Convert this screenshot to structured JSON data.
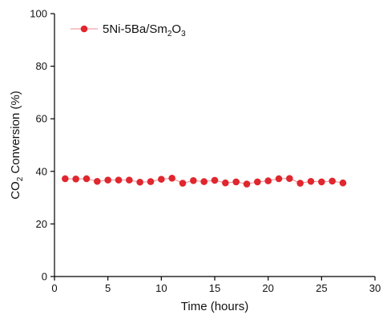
{
  "chart_data": {
    "type": "line",
    "xlabel": "Time (hours)",
    "ylabel": {
      "prefix": "CO",
      "sub": "2",
      "rest": " Conversion (%)"
    },
    "xlim": [
      0,
      30
    ],
    "ylim": [
      0,
      100
    ],
    "xticks": [
      0,
      5,
      10,
      15,
      20,
      25,
      30
    ],
    "yticks": [
      0,
      20,
      40,
      60,
      80,
      100
    ],
    "grid": false,
    "legend_position": "top-left",
    "series": [
      {
        "name": {
          "parts": [
            {
              "text": "5Ni-5Ba/Sm",
              "sub": false
            },
            {
              "text": "2",
              "sub": true
            },
            {
              "text": "O",
              "sub": false
            },
            {
              "text": "3",
              "sub": true
            }
          ]
        },
        "color": "#e0262e",
        "line_color": "#f08a8e",
        "x": [
          1,
          2,
          3,
          4,
          5,
          6,
          7,
          8,
          9,
          10,
          11,
          12,
          13,
          14,
          15,
          16,
          17,
          18,
          19,
          20,
          21,
          22,
          23,
          24,
          25,
          26,
          27
        ],
        "y": [
          37.2,
          37.1,
          37.2,
          36.2,
          36.7,
          36.7,
          36.7,
          35.9,
          36.1,
          37.0,
          37.4,
          35.5,
          36.5,
          36.1,
          36.6,
          35.6,
          36.0,
          35.2,
          36.0,
          36.4,
          37.2,
          37.3,
          35.5,
          36.2,
          36.0,
          36.3,
          35.6
        ]
      }
    ]
  }
}
